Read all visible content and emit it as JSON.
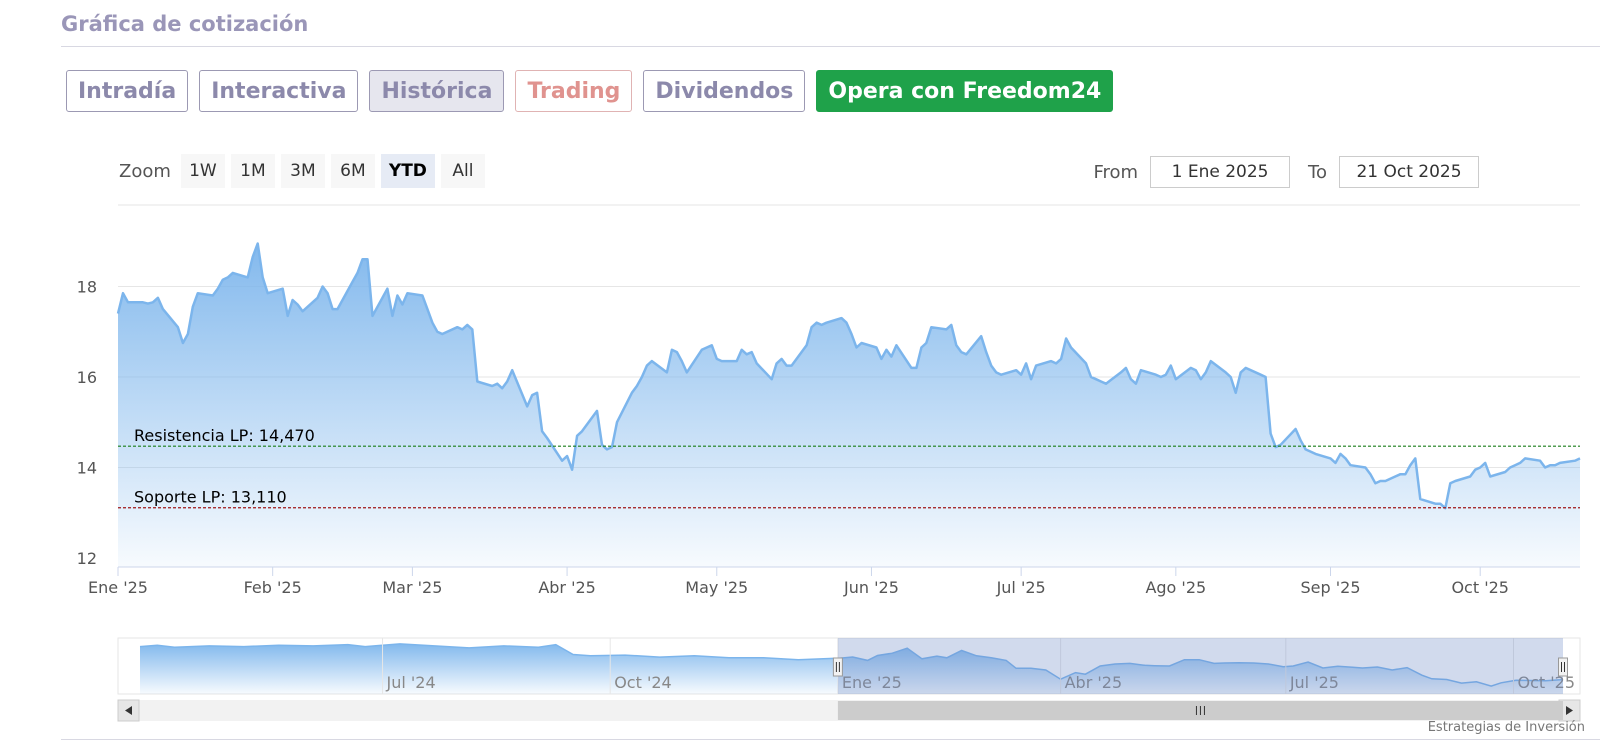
{
  "header": {
    "title": "Gráfica de cotización"
  },
  "tabs": [
    {
      "label": "Intradía"
    },
    {
      "label": "Interactiva"
    },
    {
      "label": "Histórica"
    },
    {
      "label": "Trading"
    },
    {
      "label": "Dividendos"
    },
    {
      "label": "Opera con Freedom24"
    }
  ],
  "zoom": {
    "label": "Zoom",
    "buttons": [
      "1W",
      "1M",
      "3M",
      "6M",
      "YTD",
      "All"
    ],
    "selected": "YTD"
  },
  "range": {
    "from_label": "From",
    "from_value": "1 Ene 2025",
    "to_label": "To",
    "to_value": "21 Oct 2025"
  },
  "colors": {
    "line": "#7cb5ec",
    "resistance": "#1a7f1a",
    "support": "#a01818",
    "cta": "#1fa24a"
  },
  "chart_data": {
    "type": "area",
    "x_tick_labels": [
      "Ene '25",
      "Feb '25",
      "Mar '25",
      "Abr '25",
      "May '25",
      "Jun '25",
      "Jul '25",
      "Ago '25",
      "Sep '25",
      "Oct '25"
    ],
    "y_ticks": [
      12,
      14,
      16,
      18
    ],
    "ylim": [
      11.8,
      19.8
    ],
    "xlim": [
      "2025-01-01",
      "2025-10-21"
    ],
    "grid": true,
    "series": [
      {
        "points": [
          [
            "2025-01-01",
            17.4
          ],
          [
            "2025-01-02",
            17.85
          ],
          [
            "2025-01-03",
            17.65
          ],
          [
            "2025-01-06",
            17.65
          ],
          [
            "2025-01-07",
            17.62
          ],
          [
            "2025-01-08",
            17.65
          ],
          [
            "2025-01-09",
            17.75
          ],
          [
            "2025-01-10",
            17.5
          ],
          [
            "2025-01-13",
            17.1
          ],
          [
            "2025-01-14",
            16.75
          ],
          [
            "2025-01-15",
            16.95
          ],
          [
            "2025-01-16",
            17.55
          ],
          [
            "2025-01-17",
            17.85
          ],
          [
            "2025-01-20",
            17.8
          ],
          [
            "2025-01-21",
            17.95
          ],
          [
            "2025-01-22",
            18.15
          ],
          [
            "2025-01-23",
            18.2
          ],
          [
            "2025-01-24",
            18.3
          ],
          [
            "2025-01-27",
            18.2
          ],
          [
            "2025-01-28",
            18.65
          ],
          [
            "2025-01-29",
            18.95
          ],
          [
            "2025-01-30",
            18.2
          ],
          [
            "2025-01-31",
            17.85
          ],
          [
            "2025-02-03",
            17.95
          ],
          [
            "2025-02-04",
            17.35
          ],
          [
            "2025-02-05",
            17.7
          ],
          [
            "2025-02-06",
            17.6
          ],
          [
            "2025-02-07",
            17.45
          ],
          [
            "2025-02-10",
            17.75
          ],
          [
            "2025-02-11",
            18.0
          ],
          [
            "2025-02-12",
            17.85
          ],
          [
            "2025-02-13",
            17.5
          ],
          [
            "2025-02-14",
            17.5
          ],
          [
            "2025-02-17",
            18.1
          ],
          [
            "2025-02-18",
            18.3
          ],
          [
            "2025-02-19",
            18.6
          ],
          [
            "2025-02-20",
            18.6
          ],
          [
            "2025-02-21",
            17.35
          ],
          [
            "2025-02-24",
            17.95
          ],
          [
            "2025-02-25",
            17.35
          ],
          [
            "2025-02-26",
            17.8
          ],
          [
            "2025-02-27",
            17.6
          ],
          [
            "2025-02-28",
            17.85
          ],
          [
            "2025-03-03",
            17.8
          ],
          [
            "2025-03-04",
            17.5
          ],
          [
            "2025-03-05",
            17.2
          ],
          [
            "2025-03-06",
            17.0
          ],
          [
            "2025-03-07",
            16.95
          ],
          [
            "2025-03-10",
            17.1
          ],
          [
            "2025-03-11",
            17.05
          ],
          [
            "2025-03-12",
            17.15
          ],
          [
            "2025-03-13",
            17.05
          ],
          [
            "2025-03-14",
            15.9
          ],
          [
            "2025-03-17",
            15.8
          ],
          [
            "2025-03-18",
            15.85
          ],
          [
            "2025-03-19",
            15.75
          ],
          [
            "2025-03-20",
            15.9
          ],
          [
            "2025-03-21",
            16.15
          ],
          [
            "2025-03-24",
            15.35
          ],
          [
            "2025-03-25",
            15.6
          ],
          [
            "2025-03-26",
            15.65
          ],
          [
            "2025-03-27",
            14.8
          ],
          [
            "2025-03-28",
            14.65
          ],
          [
            "2025-03-31",
            14.15
          ],
          [
            "2025-04-01",
            14.25
          ],
          [
            "2025-04-02",
            13.95
          ],
          [
            "2025-04-03",
            14.7
          ],
          [
            "2025-04-04",
            14.8
          ],
          [
            "2025-04-07",
            15.25
          ],
          [
            "2025-04-08",
            14.5
          ],
          [
            "2025-04-09",
            14.4
          ],
          [
            "2025-04-10",
            14.45
          ],
          [
            "2025-04-11",
            15.0
          ],
          [
            "2025-04-14",
            15.65
          ],
          [
            "2025-04-15",
            15.8
          ],
          [
            "2025-04-16",
            16.0
          ],
          [
            "2025-04-17",
            16.25
          ],
          [
            "2025-04-18",
            16.35
          ],
          [
            "2025-04-21",
            16.1
          ],
          [
            "2025-04-22",
            16.6
          ],
          [
            "2025-04-23",
            16.55
          ],
          [
            "2025-04-24",
            16.35
          ],
          [
            "2025-04-25",
            16.1
          ],
          [
            "2025-04-28",
            16.6
          ],
          [
            "2025-04-29",
            16.65
          ],
          [
            "2025-04-30",
            16.7
          ],
          [
            "2025-05-01",
            16.4
          ],
          [
            "2025-05-02",
            16.35
          ],
          [
            "2025-05-05",
            16.35
          ],
          [
            "2025-05-06",
            16.6
          ],
          [
            "2025-05-07",
            16.5
          ],
          [
            "2025-05-08",
            16.55
          ],
          [
            "2025-05-09",
            16.3
          ],
          [
            "2025-05-12",
            15.95
          ],
          [
            "2025-05-13",
            16.3
          ],
          [
            "2025-05-14",
            16.4
          ],
          [
            "2025-05-15",
            16.25
          ],
          [
            "2025-05-16",
            16.25
          ],
          [
            "2025-05-19",
            16.7
          ],
          [
            "2025-05-20",
            17.1
          ],
          [
            "2025-05-21",
            17.2
          ],
          [
            "2025-05-22",
            17.15
          ],
          [
            "2025-05-23",
            17.2
          ],
          [
            "2025-05-26",
            17.3
          ],
          [
            "2025-05-27",
            17.2
          ],
          [
            "2025-05-28",
            16.95
          ],
          [
            "2025-05-29",
            16.65
          ],
          [
            "2025-05-30",
            16.75
          ],
          [
            "2025-06-02",
            16.65
          ],
          [
            "2025-06-03",
            16.4
          ],
          [
            "2025-06-04",
            16.6
          ],
          [
            "2025-06-05",
            16.45
          ],
          [
            "2025-06-06",
            16.7
          ],
          [
            "2025-06-09",
            16.2
          ],
          [
            "2025-06-10",
            16.2
          ],
          [
            "2025-06-11",
            16.65
          ],
          [
            "2025-06-12",
            16.75
          ],
          [
            "2025-06-13",
            17.1
          ],
          [
            "2025-06-16",
            17.05
          ],
          [
            "2025-06-17",
            17.15
          ],
          [
            "2025-06-18",
            16.7
          ],
          [
            "2025-06-19",
            16.55
          ],
          [
            "2025-06-20",
            16.5
          ],
          [
            "2025-06-23",
            16.9
          ],
          [
            "2025-06-24",
            16.55
          ],
          [
            "2025-06-25",
            16.25
          ],
          [
            "2025-06-26",
            16.1
          ],
          [
            "2025-06-27",
            16.05
          ],
          [
            "2025-06-30",
            16.15
          ],
          [
            "2025-07-01",
            16.05
          ],
          [
            "2025-07-02",
            16.3
          ],
          [
            "2025-07-03",
            15.95
          ],
          [
            "2025-07-04",
            16.25
          ],
          [
            "2025-07-07",
            16.35
          ],
          [
            "2025-07-08",
            16.3
          ],
          [
            "2025-07-09",
            16.4
          ],
          [
            "2025-07-10",
            16.85
          ],
          [
            "2025-07-11",
            16.65
          ],
          [
            "2025-07-14",
            16.3
          ],
          [
            "2025-07-15",
            16.0
          ],
          [
            "2025-07-16",
            15.95
          ],
          [
            "2025-07-17",
            15.9
          ],
          [
            "2025-07-18",
            15.85
          ],
          [
            "2025-07-21",
            16.1
          ],
          [
            "2025-07-22",
            16.2
          ],
          [
            "2025-07-23",
            15.95
          ],
          [
            "2025-07-24",
            15.85
          ],
          [
            "2025-07-25",
            16.15
          ],
          [
            "2025-07-28",
            16.05
          ],
          [
            "2025-07-29",
            16.0
          ],
          [
            "2025-07-30",
            16.05
          ],
          [
            "2025-07-31",
            16.25
          ],
          [
            "2025-08-01",
            15.95
          ],
          [
            "2025-08-04",
            16.2
          ],
          [
            "2025-08-05",
            16.15
          ],
          [
            "2025-08-06",
            15.95
          ],
          [
            "2025-08-07",
            16.1
          ],
          [
            "2025-08-08",
            16.35
          ],
          [
            "2025-08-11",
            16.1
          ],
          [
            "2025-08-12",
            16.0
          ],
          [
            "2025-08-13",
            15.65
          ],
          [
            "2025-08-14",
            16.1
          ],
          [
            "2025-08-15",
            16.2
          ],
          [
            "2025-08-18",
            16.05
          ],
          [
            "2025-08-19",
            16.0
          ],
          [
            "2025-08-20",
            14.75
          ],
          [
            "2025-08-21",
            14.45
          ],
          [
            "2025-08-22",
            14.5
          ],
          [
            "2025-08-25",
            14.85
          ],
          [
            "2025-08-26",
            14.6
          ],
          [
            "2025-08-27",
            14.4
          ],
          [
            "2025-08-28",
            14.35
          ],
          [
            "2025-08-29",
            14.3
          ],
          [
            "2025-09-01",
            14.2
          ],
          [
            "2025-09-02",
            14.1
          ],
          [
            "2025-09-03",
            14.3
          ],
          [
            "2025-09-04",
            14.2
          ],
          [
            "2025-09-05",
            14.05
          ],
          [
            "2025-09-08",
            14.0
          ],
          [
            "2025-09-09",
            13.85
          ],
          [
            "2025-09-10",
            13.65
          ],
          [
            "2025-09-11",
            13.7
          ],
          [
            "2025-09-12",
            13.7
          ],
          [
            "2025-09-15",
            13.85
          ],
          [
            "2025-09-16",
            13.85
          ],
          [
            "2025-09-17",
            14.05
          ],
          [
            "2025-09-18",
            14.2
          ],
          [
            "2025-09-19",
            13.3
          ],
          [
            "2025-09-22",
            13.2
          ],
          [
            "2025-09-23",
            13.2
          ],
          [
            "2025-09-24",
            13.1
          ],
          [
            "2025-09-25",
            13.65
          ],
          [
            "2025-09-26",
            13.7
          ],
          [
            "2025-09-29",
            13.8
          ],
          [
            "2025-09-30",
            13.95
          ],
          [
            "2025-10-01",
            14.0
          ],
          [
            "2025-10-02",
            14.1
          ],
          [
            "2025-10-03",
            13.8
          ],
          [
            "2025-10-06",
            13.9
          ],
          [
            "2025-10-07",
            14.0
          ],
          [
            "2025-10-08",
            14.05
          ],
          [
            "2025-10-09",
            14.1
          ],
          [
            "2025-10-10",
            14.2
          ],
          [
            "2025-10-13",
            14.15
          ],
          [
            "2025-10-14",
            14.0
          ],
          [
            "2025-10-15",
            14.05
          ],
          [
            "2025-10-16",
            14.05
          ],
          [
            "2025-10-17",
            14.1
          ],
          [
            "2025-10-20",
            14.15
          ],
          [
            "2025-10-21",
            14.2
          ]
        ]
      }
    ],
    "annotations": [
      {
        "label": "Resistencia LP: 14,470",
        "value": 14.47,
        "color": "#1a7f1a"
      },
      {
        "label": "Soporte LP: 13,110",
        "value": 13.11,
        "color": "#a01818"
      }
    ],
    "navigator": {
      "x_tick_labels": [
        "Jul '24",
        "Oct '24",
        "Ene '25",
        "Abr '25",
        "Jul '25",
        "Oct '25"
      ],
      "selection": [
        "2025-01-01",
        "2025-10-21"
      ]
    }
  },
  "credit": "Estrategias de Inversión"
}
